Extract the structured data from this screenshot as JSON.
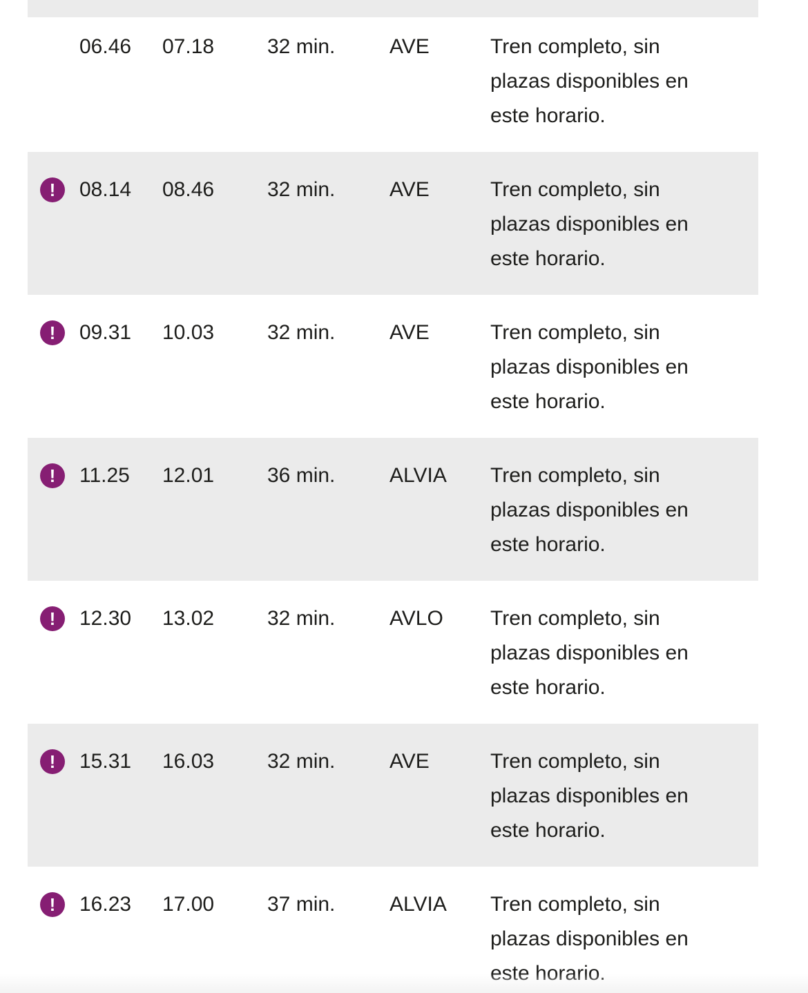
{
  "colors": {
    "accent_purple": "#861e73",
    "row_shade": "#ebebeb",
    "text": "#1d1d1b",
    "bottom_strip": "#f3f3f3"
  },
  "icons": {
    "alert_glyph": "!"
  },
  "rows": [
    {
      "departure": "06.46",
      "arrival": "07.18",
      "duration": "32 min.",
      "train_type": "AVE",
      "has_alert": false,
      "message_lines": [
        "Tren completo, sin",
        "plazas disponibles en",
        "este horario."
      ]
    },
    {
      "departure": "08.14",
      "arrival": "08.46",
      "duration": "32 min.",
      "train_type": "AVE",
      "has_alert": true,
      "message_lines": [
        "Tren completo, sin",
        "plazas disponibles en",
        "este horario."
      ]
    },
    {
      "departure": "09.31",
      "arrival": "10.03",
      "duration": "32 min.",
      "train_type": "AVE",
      "has_alert": true,
      "message_lines": [
        "Tren completo, sin",
        "plazas disponibles en",
        "este horario."
      ]
    },
    {
      "departure": "11.25",
      "arrival": "12.01",
      "duration": "36 min.",
      "train_type": "ALVIA",
      "has_alert": true,
      "message_lines": [
        "Tren completo, sin",
        "plazas disponibles en",
        "este horario."
      ]
    },
    {
      "departure": "12.30",
      "arrival": "13.02",
      "duration": "32 min.",
      "train_type": "AVLO",
      "has_alert": true,
      "message_lines": [
        "Tren completo, sin",
        "plazas disponibles en",
        "este horario."
      ]
    },
    {
      "departure": "15.31",
      "arrival": "16.03",
      "duration": "32 min.",
      "train_type": "AVE",
      "has_alert": true,
      "message_lines": [
        "Tren completo, sin",
        "plazas disponibles en",
        "este horario."
      ]
    },
    {
      "departure": "16.23",
      "arrival": "17.00",
      "duration": "37 min.",
      "train_type": "ALVIA",
      "has_alert": true,
      "message_lines": [
        "Tren completo, sin",
        "plazas disponibles en",
        "este horario."
      ]
    }
  ]
}
